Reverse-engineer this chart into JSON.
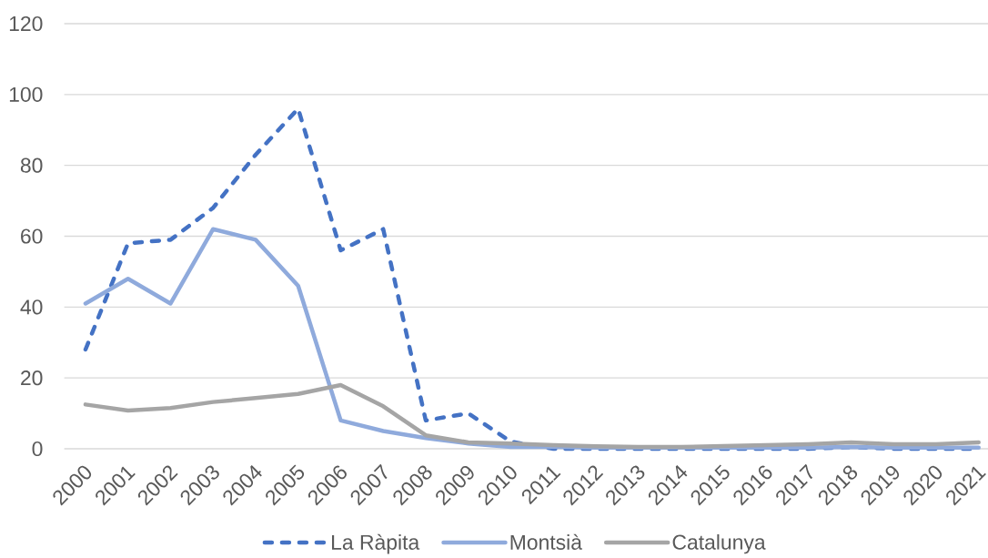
{
  "chart_data": {
    "type": "line",
    "categories": [
      "2000",
      "2001",
      "2002",
      "2003",
      "2004",
      "2005",
      "2006",
      "2007",
      "2008",
      "2009",
      "2010",
      "2011",
      "2012",
      "2013",
      "2014",
      "2015",
      "2016",
      "2017",
      "2018",
      "2019",
      "2020",
      "2021"
    ],
    "series": [
      {
        "name": "La Ràpita",
        "color": "#4472c4",
        "line_style": "dashed",
        "values": [
          28,
          58,
          59,
          68,
          83,
          96,
          56,
          62,
          8,
          10,
          2,
          0,
          0,
          0,
          0,
          0,
          0,
          0,
          0.5,
          0,
          0,
          0
        ]
      },
      {
        "name": "Montsià",
        "color": "#8faadc",
        "line_style": "solid",
        "values": [
          41,
          48,
          41,
          62,
          59,
          46,
          8,
          5,
          3,
          1.5,
          0.5,
          0.5,
          0.3,
          0.3,
          0.3,
          0.3,
          0.3,
          0.3,
          0.5,
          0.3,
          0.3,
          0.3
        ]
      },
      {
        "name": "Catalunya",
        "color": "#a5a5a5",
        "line_style": "solid",
        "values": [
          12.5,
          10.8,
          11.5,
          13.2,
          14.3,
          15.5,
          18,
          12,
          3.8,
          1.8,
          1.5,
          1,
          0.7,
          0.5,
          0.5,
          0.8,
          1,
          1.3,
          1.8,
          1.3,
          1.3,
          1.8
        ]
      }
    ],
    "ylim": [
      0,
      120
    ],
    "yticks": [
      0,
      20,
      40,
      60,
      80,
      100,
      120
    ],
    "grid": "y",
    "legend": "bottom",
    "marker": "none"
  }
}
